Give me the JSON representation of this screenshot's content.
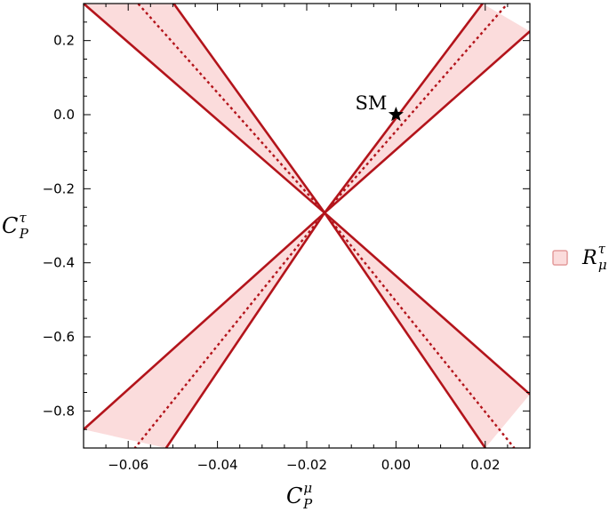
{
  "chart_data": {
    "type": "line",
    "xlim": [
      -0.07,
      0.03
    ],
    "ylim": [
      -0.9,
      0.3
    ],
    "x_ticks": [
      -0.06,
      -0.04,
      -0.02,
      0.0,
      0.02
    ],
    "x_tick_labels": [
      "−0.06",
      "−0.04",
      "−0.02",
      "0.00",
      "0.02"
    ],
    "y_ticks": [
      0.2,
      0.0,
      -0.2,
      -0.4,
      -0.6,
      -0.8
    ],
    "y_tick_labels": [
      "0.2",
      "0.0",
      "−0.2",
      "−0.4",
      "−0.6",
      "−0.8"
    ],
    "xlabel": {
      "main": "C",
      "sub": "P",
      "sup": "μ"
    },
    "ylabel": {
      "main": "C",
      "sub": "P",
      "sup": "τ"
    },
    "grid": false,
    "legend_position": "right",
    "legend": {
      "main": "R",
      "sub": "μ",
      "sup": "τ"
    },
    "annotations": [
      {
        "text": "SM",
        "x": 0.0,
        "y": 0.0,
        "marker": "star"
      }
    ],
    "bands": [
      {
        "name": "upper-right",
        "lower_edge": [
          [
            -0.016,
            -0.265
          ],
          [
            0.03,
            0.225
          ]
        ],
        "upper_edge": [
          [
            -0.016,
            -0.265
          ],
          [
            0.0194,
            0.3
          ]
        ],
        "central": [
          [
            -0.016,
            -0.265
          ],
          [
            0.025,
            0.3
          ]
        ]
      },
      {
        "name": "upper-left",
        "lower_edge": [
          [
            -0.016,
            -0.265
          ],
          [
            -0.07,
            0.3
          ]
        ],
        "upper_edge": [
          [
            -0.016,
            -0.265
          ],
          [
            -0.0498,
            0.3
          ]
        ],
        "central": [
          [
            -0.016,
            -0.265
          ],
          [
            -0.0578,
            0.3
          ]
        ]
      },
      {
        "name": "lower-left",
        "lower_edge": [
          [
            -0.016,
            -0.265
          ],
          [
            -0.0515,
            -0.9
          ]
        ],
        "upper_edge": [
          [
            -0.016,
            -0.265
          ],
          [
            -0.07,
            -0.85
          ]
        ],
        "central": [
          [
            -0.016,
            -0.265
          ],
          [
            -0.0585,
            -0.9
          ]
        ]
      },
      {
        "name": "lower-right",
        "lower_edge": [
          [
            -0.016,
            -0.265
          ],
          [
            0.02,
            -0.9
          ]
        ],
        "upper_edge": [
          [
            -0.016,
            -0.265
          ],
          [
            0.03,
            -0.755
          ]
        ],
        "central": [
          [
            -0.016,
            -0.265
          ],
          [
            0.0265,
            -0.9
          ]
        ]
      }
    ],
    "colors": {
      "fill": "#fbdcdc",
      "edge": "#b3141b",
      "central": "#b3141b",
      "legend_fill": "#fbdcdc",
      "legend_edge": "#e39b9b"
    }
  }
}
